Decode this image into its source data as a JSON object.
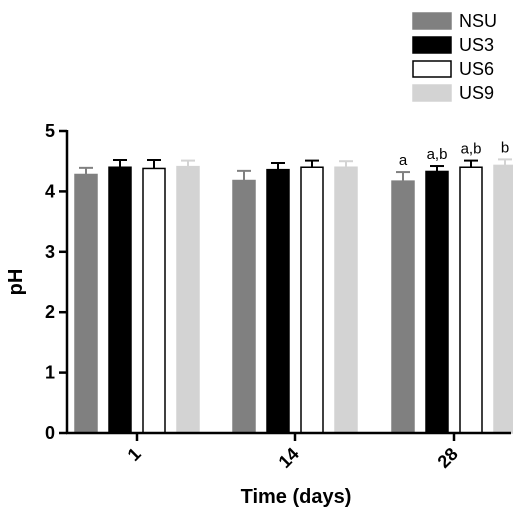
{
  "chart_data": {
    "type": "bar",
    "title": "",
    "xlabel": "Time (days)",
    "ylabel": "pH",
    "ylim": [
      0,
      5
    ],
    "yticks": [
      0,
      1,
      2,
      3,
      4,
      5
    ],
    "categories": [
      "1",
      "14",
      "28"
    ],
    "legend_position": "top-right",
    "grid": false,
    "series": [
      {
        "name": "NSU",
        "color": "#808080",
        "border": "#808080",
        "values": [
          4.28,
          4.18,
          4.17
        ],
        "errors": [
          0.11,
          0.16,
          0.15
        ],
        "sig_labels": [
          "",
          "",
          "a"
        ]
      },
      {
        "name": "US3",
        "color": "#000000",
        "border": "#000000",
        "values": [
          4.4,
          4.36,
          4.33
        ],
        "errors": [
          0.12,
          0.11,
          0.09
        ],
        "sig_labels": [
          "",
          "",
          "a,b"
        ]
      },
      {
        "name": "US6",
        "color": "#ffffff",
        "border": "#000000",
        "values": [
          4.38,
          4.4,
          4.4
        ],
        "errors": [
          0.14,
          0.11,
          0.11
        ],
        "sig_labels": [
          "",
          "",
          "a,b"
        ]
      },
      {
        "name": "US9",
        "color": "#d3d3d3",
        "border": "#d3d3d3",
        "values": [
          4.41,
          4.4,
          4.43
        ],
        "errors": [
          0.1,
          0.1,
          0.1
        ],
        "sig_labels": [
          "",
          "",
          "b"
        ]
      }
    ]
  }
}
